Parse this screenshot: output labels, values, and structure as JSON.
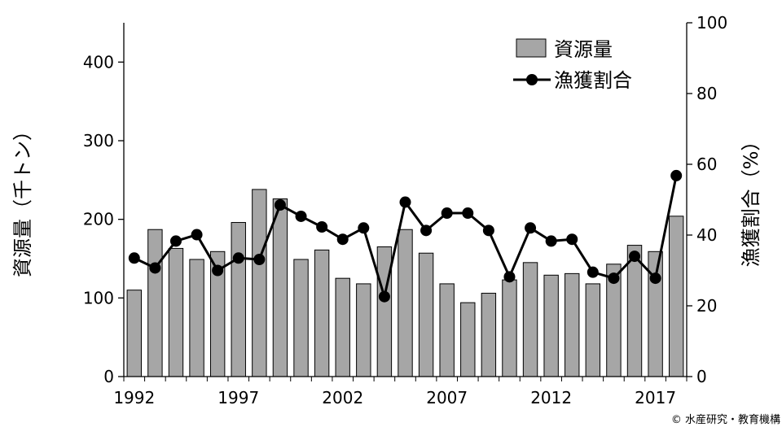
{
  "chart_data": {
    "type": "bar+line",
    "x": [
      1992,
      1993,
      1994,
      1995,
      1996,
      1997,
      1998,
      1999,
      2000,
      2001,
      2002,
      2003,
      2004,
      2005,
      2006,
      2007,
      2008,
      2009,
      2010,
      2011,
      2012,
      2013,
      2014,
      2015,
      2016,
      2017,
      2018
    ],
    "xticks": [
      "1992",
      "1997",
      "2002",
      "2007",
      "2012",
      "2017"
    ],
    "series": [
      {
        "name": "資源量",
        "type": "bar",
        "axis": "left",
        "color": "#a6a6a6",
        "values": [
          110,
          187,
          163,
          149,
          159,
          196,
          238,
          226,
          149,
          161,
          125,
          118,
          165,
          187,
          157,
          118,
          94,
          106,
          123,
          145,
          129,
          131,
          118,
          143,
          167,
          159,
          204
        ]
      },
      {
        "name": "漁獲割合",
        "type": "line",
        "axis": "right",
        "color": "#000000",
        "values": [
          33.5,
          30.7,
          38.3,
          40.1,
          30.0,
          33.5,
          33.1,
          48.5,
          45.3,
          42.3,
          38.8,
          42.0,
          22.6,
          49.3,
          41.3,
          46.2,
          46.2,
          41.3,
          28.2,
          42.0,
          38.3,
          38.8,
          29.5,
          27.8,
          34.0,
          27.8,
          56.8
        ]
      }
    ],
    "yleft": {
      "label": "資源量（千トン）",
      "min": 0,
      "max": 450,
      "ticks": [
        0,
        100,
        200,
        300,
        400
      ]
    },
    "yright": {
      "label": "漁獲割合（%）",
      "min": 0,
      "max": 100,
      "ticks": [
        0,
        20,
        40,
        60,
        80,
        100
      ]
    },
    "legend": "top-right",
    "grid": false
  },
  "credit": "© 水産研究・教育機構"
}
